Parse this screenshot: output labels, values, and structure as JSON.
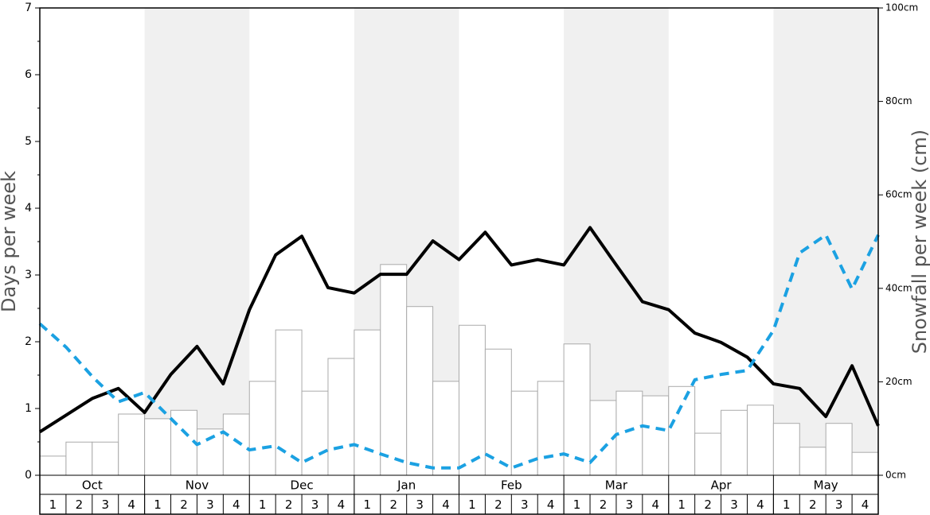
{
  "chart_data": {
    "type": "bar-line",
    "ylabel": "Days per week",
    "y2label": "Snowfall per week (cm)",
    "months": [
      "Oct",
      "Nov",
      "Dec",
      "Jan",
      "Feb",
      "Mar",
      "Apr",
      "May"
    ],
    "categories": [
      "1",
      "2",
      "3",
      "4",
      "1",
      "2",
      "3",
      "4",
      "1",
      "2",
      "3",
      "4",
      "1",
      "2",
      "3",
      "4",
      "1",
      "2",
      "3",
      "4",
      "1",
      "2",
      "3",
      "4",
      "1",
      "2",
      "3",
      "4",
      "1",
      "2",
      "3",
      "4"
    ],
    "bars": {
      "axis": "y2",
      "color": "#ffffff",
      "edge": "#aaaaaa",
      "values": [
        4.1,
        7.1,
        7.1,
        13.1,
        12.1,
        13.9,
        9.9,
        13.1,
        20.1,
        31.1,
        18.0,
        25.0,
        31.1,
        45.1,
        36.1,
        20.1,
        32.1,
        27.0,
        18.0,
        20.1,
        28.1,
        16.0,
        18.0,
        17.0,
        19.0,
        9.0,
        13.9,
        15.0,
        11.1,
        6.0,
        11.1,
        4.9
      ]
    },
    "x": [
      0,
      1,
      2,
      3,
      4,
      5,
      6,
      7,
      8,
      9,
      10,
      11,
      12,
      13,
      14,
      15,
      16,
      17,
      18,
      19,
      20,
      21,
      22,
      23,
      24,
      25,
      26,
      27,
      28,
      29,
      30,
      31,
      32
    ],
    "xlim": [
      0,
      32
    ],
    "series": [
      {
        "color": "#000000",
        "dashed": false,
        "values": [
          0.65,
          0.9,
          1.15,
          1.3,
          0.94,
          1.51,
          1.93,
          1.37,
          2.48,
          3.3,
          3.58,
          2.81,
          2.73,
          3.01,
          3.01,
          3.51,
          3.23,
          3.64,
          3.15,
          3.23,
          3.15,
          3.71,
          3.15,
          2.6,
          2.48,
          2.13,
          1.99,
          1.77,
          1.37,
          1.3,
          0.88,
          1.64,
          0.74
        ]
      },
      {
        "color": "#1ba1e2",
        "dashed": true,
        "values": [
          2.27,
          1.92,
          1.48,
          1.1,
          1.24,
          0.85,
          0.46,
          0.65,
          0.38,
          0.44,
          0.19,
          0.38,
          0.46,
          0.32,
          0.19,
          0.11,
          0.11,
          0.32,
          0.11,
          0.25,
          0.32,
          0.19,
          0.61,
          0.74,
          0.67,
          1.43,
          1.51,
          1.57,
          2.17,
          3.33,
          3.6,
          2.79,
          3.6
        ]
      }
    ],
    "ylim": [
      0,
      7
    ],
    "yticks": [
      0,
      1,
      2,
      3,
      4,
      5,
      6,
      7
    ],
    "yminorticks": [
      0.5,
      1.5,
      2.5,
      3.5,
      4.5,
      5.5,
      6.5
    ],
    "y2lim": [
      0,
      100
    ],
    "y2ticks": [
      {
        "value": 0,
        "label": "0cm"
      },
      {
        "value": 20,
        "label": "20cm"
      },
      {
        "value": 40,
        "label": "40cm"
      },
      {
        "value": 60,
        "label": "60cm"
      },
      {
        "value": 80,
        "label": "80cm"
      },
      {
        "value": 100,
        "label": "100cm"
      }
    ]
  }
}
